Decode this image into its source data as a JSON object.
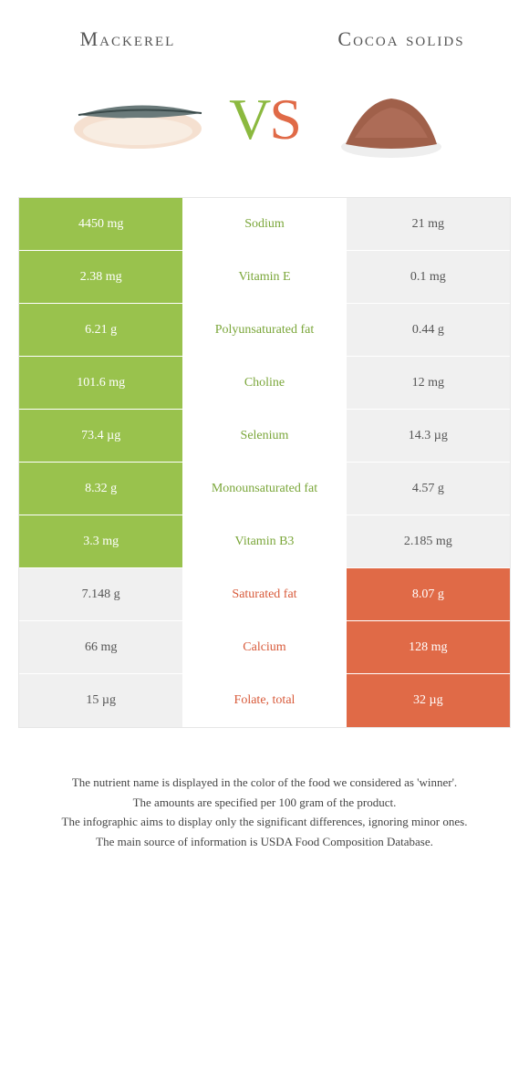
{
  "colors": {
    "green": "#99c24d",
    "orange": "#e06a47",
    "green_text": "#7aa639",
    "orange_text": "#d85a3a",
    "neutral_bg": "#f0f0f0",
    "neutral_text": "#555555",
    "background": "#ffffff"
  },
  "header": {
    "left_title": "Mackerel",
    "right_title": "Cocoa solids",
    "vs_v": "V",
    "vs_s": "S"
  },
  "table": {
    "rows": [
      {
        "left": "4450 mg",
        "mid": "Sodium",
        "right": "21 mg",
        "winner": "left"
      },
      {
        "left": "2.38 mg",
        "mid": "Vitamin E",
        "right": "0.1 mg",
        "winner": "left"
      },
      {
        "left": "6.21 g",
        "mid": "Polyunsaturated fat",
        "right": "0.44 g",
        "winner": "left"
      },
      {
        "left": "101.6 mg",
        "mid": "Choline",
        "right": "12 mg",
        "winner": "left"
      },
      {
        "left": "73.4 µg",
        "mid": "Selenium",
        "right": "14.3 µg",
        "winner": "left"
      },
      {
        "left": "8.32 g",
        "mid": "Monounsaturated fat",
        "right": "4.57 g",
        "winner": "left"
      },
      {
        "left": "3.3 mg",
        "mid": "Vitamin B3",
        "right": "2.185 mg",
        "winner": "left"
      },
      {
        "left": "7.148 g",
        "mid": "Saturated fat",
        "right": "8.07 g",
        "winner": "right"
      },
      {
        "left": "66 mg",
        "mid": "Calcium",
        "right": "128 mg",
        "winner": "right"
      },
      {
        "left": "15 µg",
        "mid": "Folate, total",
        "right": "32 µg",
        "winner": "right"
      }
    ]
  },
  "footer": {
    "line1": "The nutrient name is displayed in the color of the food we considered as 'winner'.",
    "line2": "The amounts are specified per 100 gram of the product.",
    "line3": "The infographic aims to display only the significant differences, ignoring minor ones.",
    "line4": "The main source of information is USDA Food Composition Database."
  }
}
